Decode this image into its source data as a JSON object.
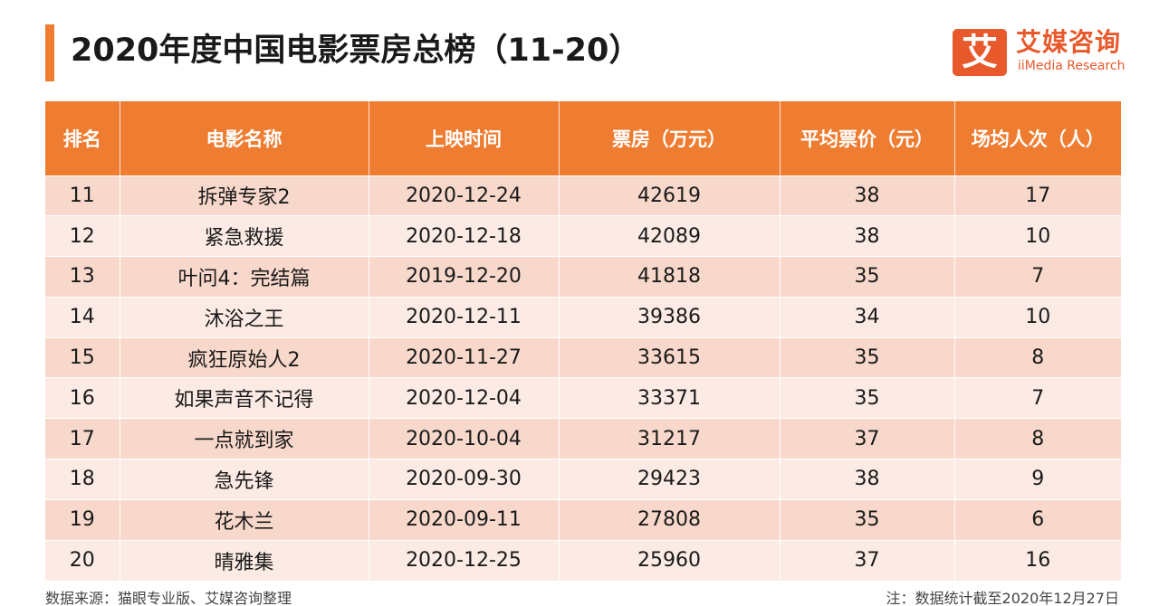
{
  "title": "2020年度中国电影票房总榜（11-20）",
  "logo": {
    "mark": "艾",
    "cn": "艾媒咨询",
    "en": "iiMedia Research"
  },
  "table": {
    "headers": [
      "排名",
      "电影名称",
      "上映时间",
      "票房（万元）",
      "平均票价（元）",
      "场均人次（人）"
    ],
    "rows": [
      [
        "11",
        "拆弹专家2",
        "2020-12-24",
        "42619",
        "38",
        "17"
      ],
      [
        "12",
        "紧急救援",
        "2020-12-18",
        "42089",
        "38",
        "10"
      ],
      [
        "13",
        "叶问4：完结篇",
        "2019-12-20",
        "41818",
        "35",
        "7"
      ],
      [
        "14",
        "沐浴之王",
        "2020-12-11",
        "39386",
        "34",
        "10"
      ],
      [
        "15",
        "疯狂原始人2",
        "2020-11-27",
        "33615",
        "35",
        "8"
      ],
      [
        "16",
        "如果声音不记得",
        "2020-12-04",
        "33371",
        "35",
        "7"
      ],
      [
        "17",
        "一点就到家",
        "2020-10-04",
        "31217",
        "37",
        "8"
      ],
      [
        "18",
        "急先锋",
        "2020-09-30",
        "29423",
        "38",
        "9"
      ],
      [
        "19",
        "花木兰",
        "2020-09-11",
        "27808",
        "35",
        "6"
      ],
      [
        "20",
        "晴雅集",
        "2020-12-25",
        "25960",
        "37",
        "16"
      ]
    ]
  },
  "footer": {
    "source": "数据来源：猫眼专业版、艾媒咨询整理",
    "note": "注：数据统计截至2020年12月27日"
  },
  "colors": {
    "accent": "#ee7d31",
    "row_odd": "#f8d8cb",
    "row_even": "#fcebe5",
    "logo": "#e8592b"
  }
}
